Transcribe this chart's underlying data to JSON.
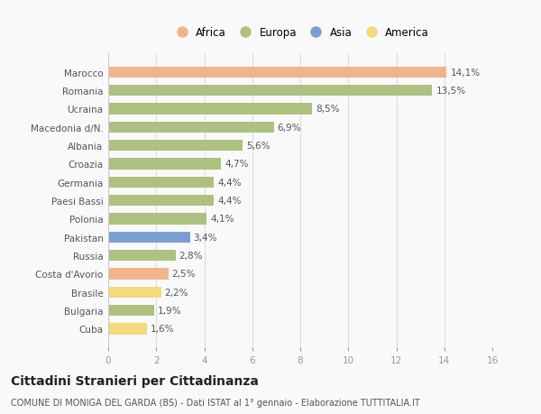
{
  "categories": [
    "Marocco",
    "Romania",
    "Ucraina",
    "Macedonia d/N.",
    "Albania",
    "Croazia",
    "Germania",
    "Paesi Bassi",
    "Polonia",
    "Pakistan",
    "Russia",
    "Costa d'Avorio",
    "Brasile",
    "Bulgaria",
    "Cuba"
  ],
  "values": [
    14.1,
    13.5,
    8.5,
    6.9,
    5.6,
    4.7,
    4.4,
    4.4,
    4.1,
    3.4,
    2.8,
    2.5,
    2.2,
    1.9,
    1.6
  ],
  "labels": [
    "14,1%",
    "13,5%",
    "8,5%",
    "6,9%",
    "5,6%",
    "4,7%",
    "4,4%",
    "4,4%",
    "4,1%",
    "3,4%",
    "2,8%",
    "2,5%",
    "2,2%",
    "1,9%",
    "1,6%"
  ],
  "colors": [
    "#f2b48a",
    "#adc180",
    "#adc180",
    "#adc180",
    "#adc180",
    "#adc180",
    "#adc180",
    "#adc180",
    "#adc180",
    "#7b9fd4",
    "#adc180",
    "#f2b48a",
    "#f5d97a",
    "#adc180",
    "#f5d97a"
  ],
  "legend": [
    {
      "label": "Africa",
      "color": "#f2b48a"
    },
    {
      "label": "Europa",
      "color": "#adc180"
    },
    {
      "label": "Asia",
      "color": "#7b9fd4"
    },
    {
      "label": "America",
      "color": "#f5d97a"
    }
  ],
  "xlim": [
    0,
    16
  ],
  "xticks": [
    0,
    2,
    4,
    6,
    8,
    10,
    12,
    14,
    16
  ],
  "title": "Cittadini Stranieri per Cittadinanza",
  "subtitle": "COMUNE DI MONIGA DEL GARDA (BS) - Dati ISTAT al 1° gennaio - Elaborazione TUTTITALIA.IT",
  "bg_color": "#f9f9f9",
  "grid_color": "#dddddd",
  "bar_height": 0.6,
  "label_fontsize": 7.5,
  "tick_fontsize": 7.5,
  "title_fontsize": 10,
  "subtitle_fontsize": 7
}
